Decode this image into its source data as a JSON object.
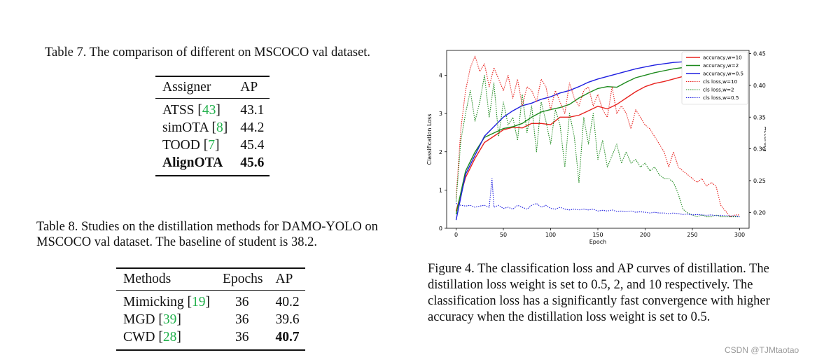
{
  "table7": {
    "caption": "Table 7. The comparison of different on MSCOCO val dataset.",
    "headers": [
      "Assigner",
      "AP"
    ],
    "rows": [
      {
        "name": "ATSS",
        "cite": "43",
        "ap": "43.1",
        "bold": false
      },
      {
        "name": "simOTA",
        "cite": "8",
        "ap": "44.2",
        "bold": false
      },
      {
        "name": "TOOD",
        "cite": "7",
        "ap": "45.4",
        "bold": false
      },
      {
        "name": "AlignOTA",
        "cite": "",
        "ap": "45.6",
        "bold": true
      }
    ]
  },
  "table8": {
    "caption_line1": "Table 8. Studies on the distillation methods for DAMO-YOLO on",
    "caption_line2": "MSCOCO val dataset. The baseline of student is 38.2.",
    "headers": [
      "Methods",
      "Epochs",
      "AP"
    ],
    "rows": [
      {
        "name": "Mimicking",
        "cite": "19",
        "epochs": "36",
        "ap": "40.2",
        "ap_bold": false
      },
      {
        "name": "MGD",
        "cite": "39",
        "epochs": "36",
        "ap": "39.6",
        "ap_bold": false
      },
      {
        "name": "CWD",
        "cite": "28",
        "epochs": "36",
        "ap": "40.7",
        "ap_bold": true
      }
    ]
  },
  "figure4": {
    "caption_lines": [
      "Figure 4. The classification loss and AP curves of distillation. The",
      "distillation loss weight is set to 0.5, 2, and 10 respectively.  The",
      "classification loss has a significantly fast convergence with higher",
      "accuracy when the distillation loss weight is set to 0.5."
    ]
  },
  "chart_data": {
    "type": "line",
    "title": "",
    "xlabel": "Epoch",
    "ylabel": "Classification Loss",
    "y2label": "Accuracy",
    "xlim": [
      -10,
      310
    ],
    "ylim": [
      0,
      4.65
    ],
    "y2lim": [
      0.175,
      0.455
    ],
    "xticks": [
      0,
      50,
      100,
      150,
      200,
      250,
      300
    ],
    "yticks": [
      0,
      1,
      2,
      3,
      4
    ],
    "y2ticks": [
      0.2,
      0.25,
      0.3,
      0.35,
      0.4,
      0.45
    ],
    "y2ticklabels": [
      "0.20",
      "0.25",
      "0.30",
      "0.35",
      "0.40",
      "0.45"
    ],
    "grid": false,
    "legend_position": "top-right",
    "colors": {
      "w10": "#e8231f",
      "w2": "#1d8a1d",
      "w05": "#1f1fe0"
    },
    "series": [
      {
        "name": "accuracy,w=10",
        "axis": "right",
        "style": "solid",
        "color_key": "w10",
        "x": [
          0,
          10,
          20,
          30,
          40,
          50,
          60,
          70,
          80,
          90,
          100,
          110,
          120,
          130,
          140,
          150,
          160,
          170,
          180,
          190,
          200,
          210,
          220,
          230,
          240,
          250
        ],
        "y": [
          0.202,
          0.255,
          0.285,
          0.31,
          0.32,
          0.33,
          0.334,
          0.333,
          0.34,
          0.34,
          0.338,
          0.35,
          0.35,
          0.353,
          0.36,
          0.367,
          0.363,
          0.37,
          0.38,
          0.39,
          0.398,
          0.403,
          0.406,
          0.41,
          0.414,
          0.418
        ]
      },
      {
        "name": "accuracy,w=2",
        "axis": "right",
        "style": "solid",
        "color_key": "w2",
        "x": [
          0,
          10,
          20,
          30,
          40,
          50,
          60,
          70,
          80,
          90,
          100,
          110,
          120,
          130,
          140,
          150,
          160,
          170,
          180,
          190,
          200,
          210,
          220,
          230,
          240,
          250
        ],
        "y": [
          0.197,
          0.265,
          0.295,
          0.318,
          0.325,
          0.332,
          0.335,
          0.34,
          0.35,
          0.358,
          0.362,
          0.365,
          0.37,
          0.38,
          0.388,
          0.395,
          0.398,
          0.397,
          0.405,
          0.412,
          0.416,
          0.42,
          0.423,
          0.426,
          0.428,
          0.43
        ]
      },
      {
        "name": "accuracy,w=0.5",
        "axis": "right",
        "style": "solid",
        "color_key": "w05",
        "x": [
          0,
          10,
          20,
          30,
          40,
          50,
          60,
          70,
          80,
          90,
          100,
          110,
          120,
          130,
          140,
          150,
          160,
          170,
          180,
          190,
          200,
          210,
          220,
          230,
          240,
          250
        ],
        "y": [
          0.188,
          0.26,
          0.29,
          0.32,
          0.335,
          0.35,
          0.36,
          0.368,
          0.372,
          0.378,
          0.382,
          0.388,
          0.392,
          0.398,
          0.405,
          0.41,
          0.414,
          0.418,
          0.422,
          0.426,
          0.429,
          0.432,
          0.434,
          0.436,
          0.437,
          0.438
        ]
      },
      {
        "name": "cls loss,w=10",
        "axis": "left",
        "style": "dotted",
        "color_key": "w10",
        "x": [
          0,
          5,
          10,
          15,
          20,
          25,
          30,
          35,
          40,
          45,
          50,
          55,
          60,
          65,
          70,
          75,
          80,
          85,
          90,
          95,
          100,
          105,
          110,
          115,
          120,
          125,
          130,
          135,
          140,
          145,
          150,
          155,
          160,
          165,
          170,
          175,
          180,
          185,
          190,
          195,
          200,
          205,
          210,
          215,
          220,
          225,
          230,
          235,
          240,
          245,
          250,
          255,
          260,
          265,
          270,
          275,
          280,
          285,
          290,
          295,
          300
        ],
        "y": [
          0.8,
          2.6,
          3.6,
          4.2,
          4.5,
          4.1,
          4.3,
          3.7,
          4.2,
          3.9,
          3.6,
          4.0,
          3.4,
          3.9,
          3.2,
          3.7,
          3.6,
          3.3,
          3.9,
          3.7,
          3.1,
          3.6,
          3.3,
          3.0,
          3.8,
          3.4,
          3.2,
          3.6,
          3.7,
          3.2,
          3.5,
          3.1,
          2.9,
          3.7,
          3.0,
          3.2,
          3.0,
          2.6,
          3.1,
          2.9,
          2.7,
          2.6,
          2.4,
          2.2,
          2.0,
          1.6,
          2.0,
          1.6,
          1.5,
          1.4,
          1.3,
          1.2,
          1.3,
          1.1,
          1.2,
          1.1,
          0.6,
          0.45,
          0.3,
          0.35,
          0.35
        ]
      },
      {
        "name": "cls loss,w=2",
        "axis": "left",
        "style": "dotted",
        "color_key": "w2",
        "x": [
          0,
          5,
          10,
          15,
          20,
          25,
          30,
          35,
          40,
          45,
          50,
          55,
          60,
          65,
          70,
          75,
          80,
          85,
          90,
          95,
          100,
          105,
          110,
          115,
          120,
          125,
          130,
          135,
          140,
          145,
          150,
          155,
          160,
          165,
          170,
          175,
          180,
          185,
          190,
          195,
          200,
          205,
          210,
          215,
          220,
          225,
          230,
          235,
          240,
          245,
          250,
          255,
          260,
          265,
          270,
          275,
          280,
          285,
          290,
          295,
          300
        ],
        "y": [
          0.7,
          2.3,
          3.0,
          3.6,
          2.8,
          3.3,
          4.0,
          2.9,
          3.8,
          2.4,
          3.3,
          2.7,
          2.9,
          2.3,
          3.5,
          2.5,
          3.2,
          2.0,
          3.3,
          2.8,
          2.2,
          3.1,
          2.7,
          1.6,
          3.0,
          2.4,
          1.2,
          2.9,
          2.2,
          3.0,
          1.8,
          2.3,
          1.6,
          1.9,
          2.2,
          1.7,
          2.0,
          1.7,
          1.8,
          1.6,
          1.7,
          1.5,
          1.6,
          1.4,
          1.3,
          1.3,
          1.2,
          0.9,
          0.5,
          0.4,
          0.35,
          0.3,
          0.35,
          0.3,
          0.3,
          0.35,
          0.3,
          0.3,
          0.3,
          0.3,
          0.3
        ]
      },
      {
        "name": "cls loss,w=0.5",
        "axis": "left",
        "style": "dotted",
        "color_key": "w05",
        "x": [
          0,
          5,
          10,
          15,
          20,
          25,
          30,
          35,
          38,
          40,
          45,
          50,
          55,
          60,
          65,
          70,
          75,
          80,
          85,
          90,
          95,
          100,
          105,
          110,
          115,
          120,
          125,
          130,
          135,
          140,
          145,
          150,
          155,
          160,
          165,
          170,
          175,
          180,
          185,
          190,
          195,
          200,
          205,
          210,
          215,
          220,
          225,
          230,
          235,
          240,
          245,
          250,
          255,
          260,
          265,
          270,
          275,
          280,
          285,
          290,
          295,
          300
        ],
        "y": [
          0.65,
          0.6,
          0.58,
          0.6,
          0.55,
          0.58,
          0.6,
          0.55,
          1.3,
          0.55,
          0.6,
          0.52,
          0.55,
          0.5,
          0.6,
          0.55,
          0.5,
          0.6,
          0.65,
          0.55,
          0.6,
          0.52,
          0.5,
          0.55,
          0.5,
          0.48,
          0.5,
          0.48,
          0.5,
          0.48,
          0.5,
          0.45,
          0.47,
          0.45,
          0.48,
          0.44,
          0.45,
          0.43,
          0.45,
          0.42,
          0.43,
          0.42,
          0.4,
          0.42,
          0.4,
          0.4,
          0.38,
          0.4,
          0.38,
          0.36,
          0.37,
          0.35,
          0.36,
          0.35,
          0.34,
          0.35,
          0.33,
          0.34,
          0.33,
          0.32,
          0.32,
          0.3
        ]
      }
    ]
  },
  "watermark": "CSDN @TJMtaotao"
}
